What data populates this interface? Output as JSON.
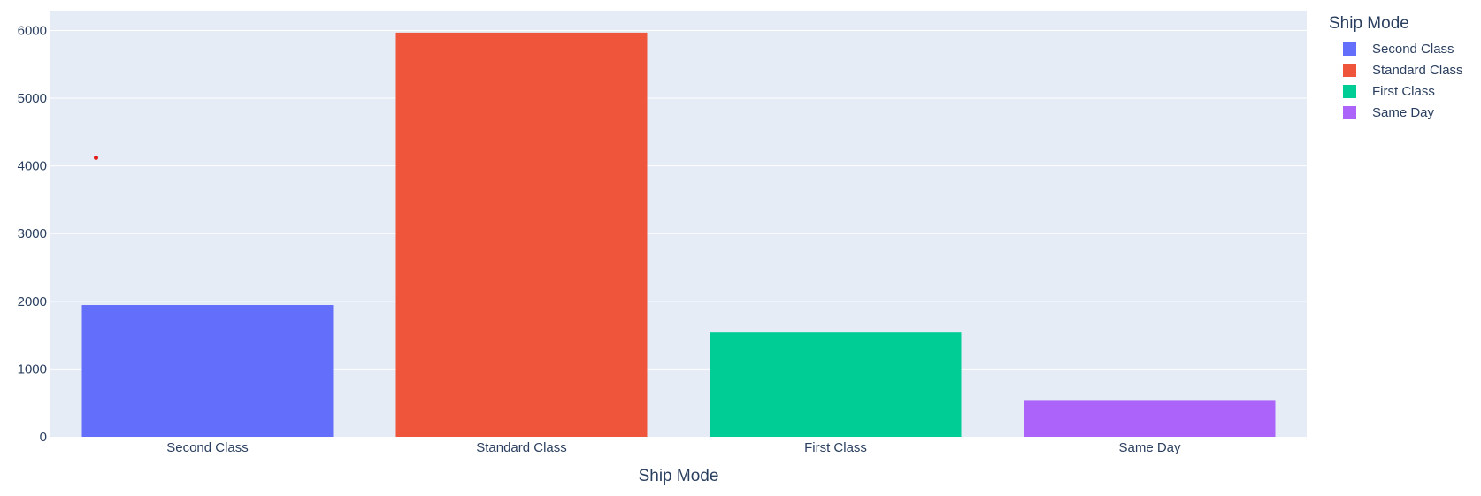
{
  "chart_data": {
    "type": "bar",
    "categories": [
      "Second Class",
      "Standard Class",
      "First Class",
      "Same Day"
    ],
    "values": [
      1945,
      5968,
      1538,
      543
    ],
    "colors": [
      "#636efa",
      "#ef553b",
      "#00cc96",
      "#ab63fa"
    ],
    "xlabel": "Ship Mode",
    "ylabel": "",
    "ylim": [
      0,
      6280
    ],
    "yticks": [
      0,
      1000,
      2000,
      3000,
      4000,
      5000,
      6000
    ],
    "ytick_labels": [
      "0",
      "1000",
      "2000",
      "3000",
      "4000",
      "5000",
      "6000"
    ],
    "grid": true,
    "legend": {
      "title": "Ship Mode",
      "placement": "top-right",
      "entries": [
        "Second Class",
        "Standard Class",
        "First Class",
        "Same Day"
      ]
    },
    "annotation_point": {
      "category": "Second Class",
      "y": 4120,
      "color": "#e0201a"
    }
  }
}
